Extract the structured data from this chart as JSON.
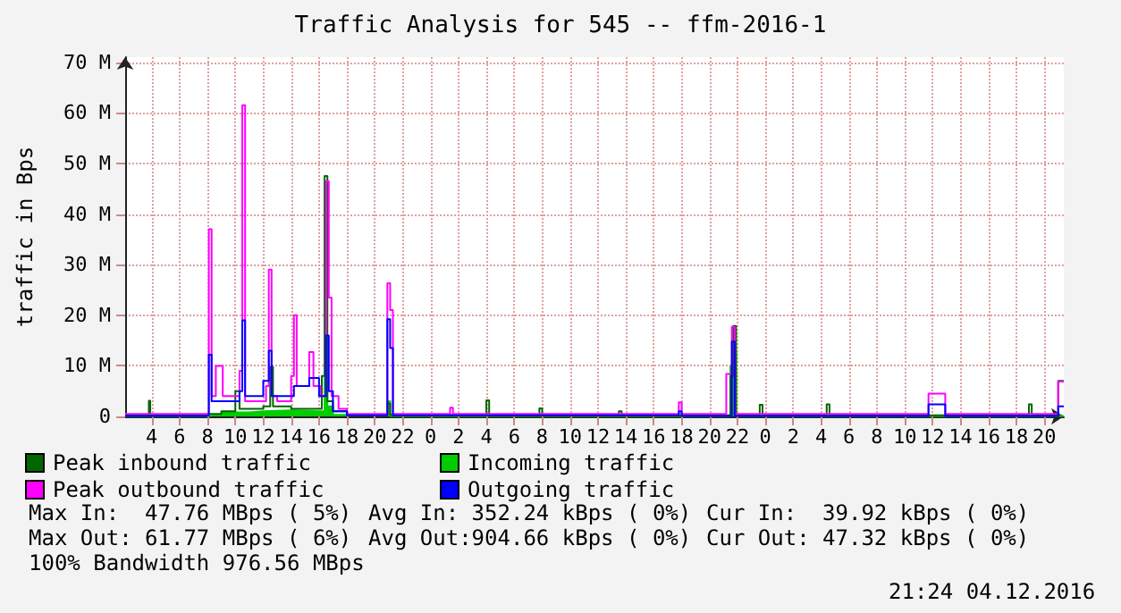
{
  "chart_data": {
    "type": "step",
    "title": "Traffic Analysis for 545 -- ffm-2016-1",
    "ylabel": "traffic in Bps",
    "xlim": [
      "2016-12-02T02:06",
      "2016-12-04T21:24"
    ],
    "xticks": [
      {
        "value": "2016-12-02T04:00",
        "label": "4"
      },
      {
        "value": "2016-12-02T06:00",
        "label": "6"
      },
      {
        "value": "2016-12-02T08:00",
        "label": "8"
      },
      {
        "value": "2016-12-02T10:00",
        "label": "10"
      },
      {
        "value": "2016-12-02T12:00",
        "label": "12"
      },
      {
        "value": "2016-12-02T14:00",
        "label": "14"
      },
      {
        "value": "2016-12-02T16:00",
        "label": "16"
      },
      {
        "value": "2016-12-02T18:00",
        "label": "18"
      },
      {
        "value": "2016-12-02T20:00",
        "label": "20"
      },
      {
        "value": "2016-12-02T22:00",
        "label": "22"
      },
      {
        "value": "2016-12-03T00:00",
        "label": "0"
      },
      {
        "value": "2016-12-03T02:00",
        "label": "2"
      },
      {
        "value": "2016-12-03T04:00",
        "label": "4"
      },
      {
        "value": "2016-12-03T06:00",
        "label": "6"
      },
      {
        "value": "2016-12-03T08:00",
        "label": "8"
      },
      {
        "value": "2016-12-03T10:00",
        "label": "10"
      },
      {
        "value": "2016-12-03T12:00",
        "label": "12"
      },
      {
        "value": "2016-12-03T14:00",
        "label": "14"
      },
      {
        "value": "2016-12-03T16:00",
        "label": "16"
      },
      {
        "value": "2016-12-03T18:00",
        "label": "18"
      },
      {
        "value": "2016-12-03T20:00",
        "label": "20"
      },
      {
        "value": "2016-12-03T22:00",
        "label": "22"
      },
      {
        "value": "2016-12-04T00:00",
        "label": "0"
      },
      {
        "value": "2016-12-04T02:00",
        "label": "2"
      },
      {
        "value": "2016-12-04T04:00",
        "label": "4"
      },
      {
        "value": "2016-12-04T06:00",
        "label": "6"
      },
      {
        "value": "2016-12-04T08:00",
        "label": "8"
      },
      {
        "value": "2016-12-04T10:00",
        "label": "10"
      },
      {
        "value": "2016-12-04T12:00",
        "label": "12"
      },
      {
        "value": "2016-12-04T14:00",
        "label": "14"
      },
      {
        "value": "2016-12-04T16:00",
        "label": "16"
      },
      {
        "value": "2016-12-04T18:00",
        "label": "18"
      },
      {
        "value": "2016-12-04T20:00",
        "label": "20"
      }
    ],
    "ylim": [
      0,
      71
    ],
    "yticks": [
      {
        "value": 0,
        "label": "0"
      },
      {
        "value": 10,
        "label": "10 M"
      },
      {
        "value": 20,
        "label": "20 M"
      },
      {
        "value": 30,
        "label": "30 M"
      },
      {
        "value": 40,
        "label": "40 M"
      },
      {
        "value": 50,
        "label": "50 M"
      },
      {
        "value": 60,
        "label": "60 M"
      },
      {
        "value": 70,
        "label": "70 M"
      }
    ],
    "grid": true,
    "legend": "bottom",
    "marker": "none",
    "line_style": "solid",
    "series": [
      {
        "name": "Peak inbound traffic",
        "color": "#006600",
        "x": [
          "2016-12-02T02:06",
          "2016-12-02T03:42",
          "2016-12-02T03:48",
          "2016-12-02T03:54",
          "2016-12-02T08:00",
          "2016-12-02T09:00",
          "2016-12-02T10:00",
          "2016-12-02T10:18",
          "2016-12-02T12:00",
          "2016-12-02T12:30",
          "2016-12-02T12:42",
          "2016-12-02T14:00",
          "2016-12-02T16:00",
          "2016-12-02T16:12",
          "2016-12-02T16:24",
          "2016-12-02T16:36",
          "2016-12-02T17:00",
          "2016-12-02T18:00",
          "2016-12-02T20:48",
          "2016-12-02T20:54",
          "2016-12-02T21:06",
          "2016-12-03T04:00",
          "2016-12-03T04:12",
          "2016-12-03T07:48",
          "2016-12-03T08:00",
          "2016-12-03T13:30",
          "2016-12-03T13:42",
          "2016-12-03T21:30",
          "2016-12-03T21:42",
          "2016-12-03T21:54",
          "2016-12-03T23:36",
          "2016-12-03T23:48",
          "2016-12-04T04:24",
          "2016-12-04T04:36",
          "2016-12-04T18:54",
          "2016-12-04T19:06",
          "2016-12-04T21:00",
          "2016-12-04T21:24"
        ],
        "values": [
          0.2,
          0.2,
          3.1,
          0.2,
          0.5,
          1,
          5,
          1.5,
          2,
          9.8,
          2,
          1.5,
          1.5,
          8,
          47.5,
          3,
          1,
          0.3,
          0.3,
          2.5,
          0.3,
          3.2,
          0.2,
          1.6,
          0.2,
          1,
          0.2,
          8,
          17.9,
          0.3,
          2.3,
          0.2,
          2.4,
          0.2,
          2.4,
          0.2,
          7,
          7
        ]
      },
      {
        "name": "Incoming traffic",
        "color": "#00cc00",
        "type": "area",
        "x": [
          "2016-12-02T02:06",
          "2016-12-02T08:00",
          "2016-12-02T09:00",
          "2016-12-02T11:00",
          "2016-12-02T12:00",
          "2016-12-02T14:00",
          "2016-12-02T16:00",
          "2016-12-02T16:24",
          "2016-12-02T16:36",
          "2016-12-02T17:00",
          "2016-12-02T20:54",
          "2016-12-02T21:06",
          "2016-12-03T21:30",
          "2016-12-03T21:42",
          "2016-12-03T21:54",
          "2016-12-04T21:24"
        ],
        "values": [
          0.1,
          0.3,
          0.8,
          1,
          1.2,
          1,
          1,
          8,
          2,
          0.3,
          3,
          0.1,
          10,
          12.6,
          0.1,
          0.1
        ]
      },
      {
        "name": "Peak outbound traffic",
        "color": "#ff00ff",
        "x": [
          "2016-12-02T02:06",
          "2016-12-02T07:54",
          "2016-12-02T08:06",
          "2016-12-02T08:18",
          "2016-12-02T08:36",
          "2016-12-02T09:06",
          "2016-12-02T10:18",
          "2016-12-02T10:30",
          "2016-12-02T10:42",
          "2016-12-02T11:00",
          "2016-12-02T12:12",
          "2016-12-02T12:24",
          "2016-12-02T12:36",
          "2016-12-02T13:00",
          "2016-12-02T14:00",
          "2016-12-02T14:12",
          "2016-12-02T14:24",
          "2016-12-02T15:18",
          "2016-12-02T15:36",
          "2016-12-02T16:06",
          "2016-12-02T16:30",
          "2016-12-02T16:42",
          "2016-12-02T16:54",
          "2016-12-02T17:24",
          "2016-12-02T18:00",
          "2016-12-02T20:48",
          "2016-12-02T20:54",
          "2016-12-02T21:06",
          "2016-12-02T21:18",
          "2016-12-03T01:24",
          "2016-12-03T01:36",
          "2016-12-03T17:48",
          "2016-12-03T18:00",
          "2016-12-03T21:12",
          "2016-12-03T21:36",
          "2016-12-03T21:48",
          "2016-12-04T11:42",
          "2016-12-04T12:42",
          "2016-12-04T12:54",
          "2016-12-04T20:54",
          "2016-12-04T21:00",
          "2016-12-04T21:24"
        ],
        "values": [
          0.5,
          0.5,
          37,
          4,
          10,
          4,
          9,
          61.5,
          3,
          3,
          6,
          29,
          4,
          3,
          8,
          20,
          6,
          12.7,
          6,
          4,
          46.5,
          23.5,
          4,
          1.5,
          0.5,
          0.5,
          26.3,
          21,
          0.5,
          1.7,
          0.5,
          2.8,
          0.5,
          8.4,
          17.7,
          0.5,
          4.5,
          4.5,
          0.5,
          0.5,
          6.9,
          6.9
        ]
      },
      {
        "name": "Outgoing traffic",
        "color": "#0000ff",
        "x": [
          "2016-12-02T02:06",
          "2016-12-02T07:54",
          "2016-12-02T08:06",
          "2016-12-02T08:18",
          "2016-12-02T09:00",
          "2016-12-02T10:18",
          "2016-12-02T10:30",
          "2016-12-02T10:42",
          "2016-12-02T12:00",
          "2016-12-02T12:24",
          "2016-12-02T12:36",
          "2016-12-02T14:12",
          "2016-12-02T15:18",
          "2016-12-02T16:00",
          "2016-12-02T16:30",
          "2016-12-02T16:42",
          "2016-12-02T17:00",
          "2016-12-02T18:00",
          "2016-12-02T20:54",
          "2016-12-02T21:06",
          "2016-12-02T21:18",
          "2016-12-03T17:48",
          "2016-12-03T18:00",
          "2016-12-03T21:36",
          "2016-12-03T21:48",
          "2016-12-04T11:42",
          "2016-12-04T12:42",
          "2016-12-04T12:54",
          "2016-12-04T21:00",
          "2016-12-04T21:24"
        ],
        "values": [
          0.1,
          0.2,
          12.2,
          3,
          3,
          5,
          19,
          4,
          7,
          13,
          4,
          6,
          7.6,
          4,
          16,
          5,
          1,
          0.2,
          19.2,
          13.5,
          0.2,
          1,
          0.1,
          14.8,
          0.1,
          2.4,
          2.4,
          0.1,
          2,
          2
        ]
      }
    ],
    "annotations": [
      "Max In:  47.76 MBps ( 5%)",
      "Avg In: 352.24 kBps ( 0%)",
      "Cur In:  39.92 kBps ( 0%)",
      "Max Out: 61.77 MBps ( 6%)",
      "Avg Out:904.66 kBps ( 0%)",
      "Cur Out: 47.32 kBps ( 0%)",
      "100% Bandwidth 976.56 MBps",
      "21:24 04.12.2016"
    ]
  }
}
